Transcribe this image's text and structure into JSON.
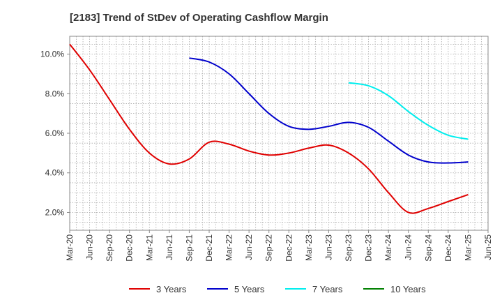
{
  "chart_data": {
    "type": "line",
    "title": "[2183]  Trend of StDev of Operating Cashflow Margin",
    "xlabel": "",
    "ylabel": "",
    "x_ticks": [
      "Mar-20",
      "Jun-20",
      "Sep-20",
      "Dec-20",
      "Mar-21",
      "Jun-21",
      "Sep-21",
      "Dec-21",
      "Mar-22",
      "Jun-22",
      "Sep-22",
      "Dec-22",
      "Mar-23",
      "Jun-23",
      "Sep-23",
      "Dec-23",
      "Mar-24",
      "Jun-24",
      "Sep-24",
      "Dec-24",
      "Mar-25",
      "Jun-25"
    ],
    "y_ticks": [
      "2.0%",
      "4.0%",
      "6.0%",
      "8.0%",
      "10.0%"
    ],
    "y_tick_values": [
      2,
      4,
      6,
      8,
      10
    ],
    "ylim": [
      1.1,
      10.9
    ],
    "grid": true,
    "legend_position": "bottom",
    "series": [
      {
        "name": "3 Years",
        "color": "#e00000",
        "x": [
          "Mar-20",
          "Jun-20",
          "Sep-20",
          "Dec-20",
          "Mar-21",
          "Jun-21",
          "Sep-21",
          "Dec-21",
          "Mar-22",
          "Jun-22",
          "Sep-22",
          "Dec-22",
          "Mar-23",
          "Jun-23",
          "Sep-23",
          "Dec-23",
          "Mar-24",
          "Jun-24",
          "Sep-24",
          "Dec-24",
          "Mar-25"
        ],
        "values": [
          10.5,
          9.2,
          7.7,
          6.2,
          5.0,
          4.45,
          4.7,
          5.55,
          5.45,
          5.1,
          4.9,
          5.0,
          5.25,
          5.4,
          5.0,
          4.2,
          3.0,
          2.0,
          2.2,
          2.55,
          2.9
        ]
      },
      {
        "name": "5 Years",
        "color": "#0000cc",
        "x": [
          "Sep-21",
          "Dec-21",
          "Mar-22",
          "Jun-22",
          "Sep-22",
          "Dec-22",
          "Mar-23",
          "Jun-23",
          "Sep-23",
          "Dec-23",
          "Mar-24",
          "Jun-24",
          "Sep-24",
          "Dec-24",
          "Mar-25"
        ],
        "values": [
          9.8,
          9.6,
          9.0,
          8.0,
          7.0,
          6.35,
          6.2,
          6.35,
          6.55,
          6.3,
          5.6,
          4.9,
          4.55,
          4.5,
          4.55
        ]
      },
      {
        "name": "7 Years",
        "color": "#00eeee",
        "x": [
          "Sep-23",
          "Dec-23",
          "Mar-24",
          "Jun-24",
          "Sep-24",
          "Dec-24",
          "Mar-25"
        ],
        "values": [
          8.55,
          8.4,
          7.9,
          7.1,
          6.4,
          5.9,
          5.7
        ]
      },
      {
        "name": "10 Years",
        "color": "#008000",
        "x": [],
        "values": []
      }
    ]
  }
}
